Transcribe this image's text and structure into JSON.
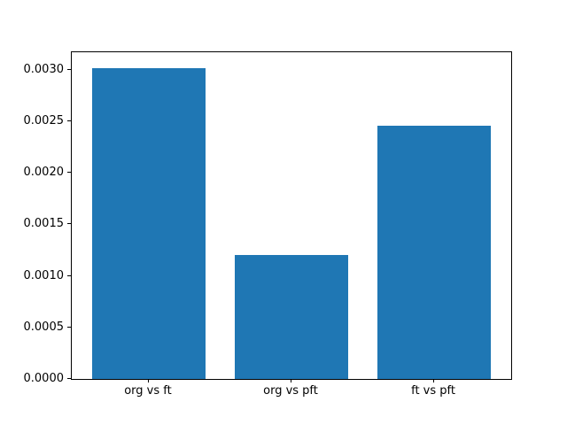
{
  "chart_data": {
    "type": "bar",
    "title": "",
    "xlabel": "",
    "ylabel": "",
    "categories": [
      "org vs ft",
      "org vs pft",
      "ft vs pft"
    ],
    "values": [
      0.00302,
      0.0012,
      0.00246
    ],
    "ytick_labels": [
      "0.0000",
      "0.0005",
      "0.0010",
      "0.0015",
      "0.0020",
      "0.0025",
      "0.0030"
    ],
    "yticks": [
      0.0,
      0.0005,
      0.001,
      0.0015,
      0.002,
      0.0025,
      0.003
    ],
    "ylim": [
      0,
      0.003171
    ],
    "xlim": [
      -0.54,
      2.54
    ],
    "bar_positions": [
      0,
      1,
      2
    ],
    "bar_width_data_units": 0.8,
    "bar_color": "#1f77b4",
    "spine_color": "#000000",
    "text_color": "#000000",
    "background_color": "#ffffff",
    "grid": false,
    "legend": null
  }
}
